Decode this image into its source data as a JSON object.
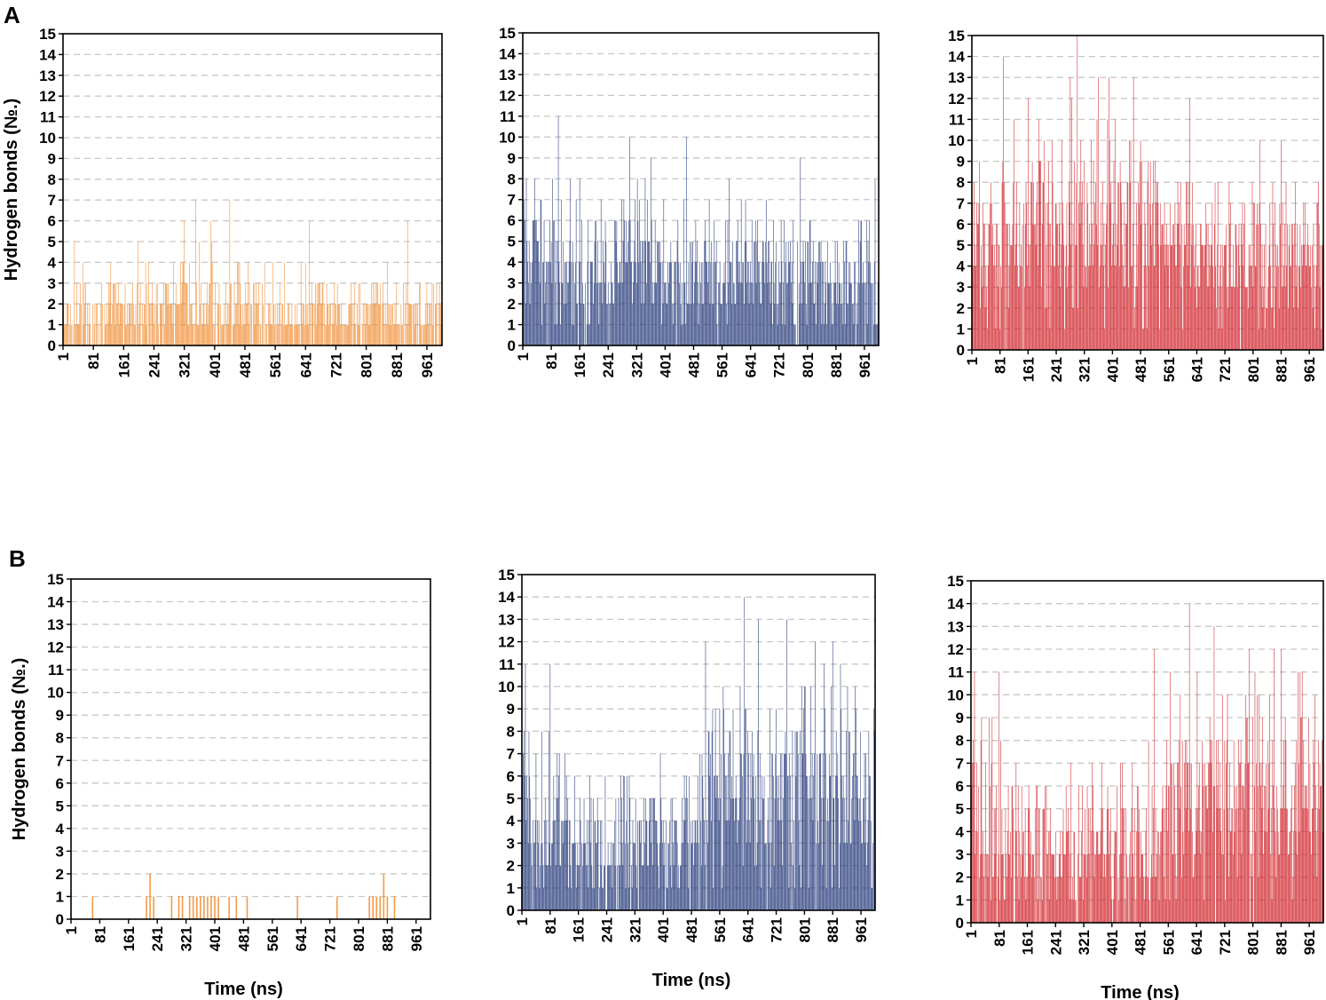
{
  "panels": [
    {
      "label": "A"
    },
    {
      "label": "B"
    }
  ],
  "colors": {
    "orange": "#f08a2c",
    "navy": "#1f3475",
    "red": "#cf2027",
    "grid": "#c8c8c8"
  },
  "chart_data": [
    {
      "id": "A1",
      "panel": "A",
      "type": "bar",
      "color": "#f08a2c",
      "title": "",
      "ylabel": "Hydrogen bonds (№.)",
      "xlabel": "",
      "ylim": [
        0,
        15
      ],
      "yticks": [
        0,
        1,
        2,
        3,
        4,
        5,
        6,
        7,
        8,
        9,
        10,
        11,
        12,
        13,
        14,
        15
      ],
      "xticks": [
        "1",
        "81",
        "161",
        "241",
        "321",
        "401",
        "481",
        "561",
        "641",
        "721",
        "801",
        "881",
        "961"
      ],
      "x_range": [
        1,
        1001
      ],
      "n": 501,
      "gridlines": "dashed",
      "profile_x": [
        1,
        301,
        481,
        1001
      ],
      "profile_mean": [
        1.3,
        2.0,
        1.6,
        1.5
      ],
      "profile_max": [
        4,
        5,
        5,
        4
      ],
      "peaks": [
        {
          "x": 31,
          "y": 5
        },
        {
          "x": 351,
          "y": 7
        },
        {
          "x": 441,
          "y": 7
        },
        {
          "x": 391,
          "y": 6
        },
        {
          "x": 321,
          "y": 6
        },
        {
          "x": 651,
          "y": 6
        },
        {
          "x": 911,
          "y": 6
        }
      ]
    },
    {
      "id": "A2",
      "panel": "A",
      "type": "bar",
      "color": "#1f3475",
      "title": "",
      "ylabel": "",
      "xlabel": "",
      "ylim": [
        0,
        15
      ],
      "yticks": [
        0,
        1,
        2,
        3,
        4,
        5,
        6,
        7,
        8,
        9,
        10,
        11,
        12,
        13,
        14,
        15
      ],
      "xticks": [
        "1",
        "81",
        "161",
        "241",
        "321",
        "401",
        "481",
        "561",
        "641",
        "721",
        "801",
        "881",
        "961"
      ],
      "x_range": [
        1,
        1001
      ],
      "n": 501,
      "gridlines": "dashed",
      "profile_x": [
        1,
        241,
        561,
        841,
        1001
      ],
      "profile_mean": [
        4.2,
        4.0,
        3.7,
        3.0,
        3.2
      ],
      "profile_max": [
        8,
        8,
        7,
        6,
        7
      ],
      "peaks": [
        {
          "x": 101,
          "y": 11
        },
        {
          "x": 301,
          "y": 10
        },
        {
          "x": 461,
          "y": 10
        },
        {
          "x": 361,
          "y": 9
        },
        {
          "x": 781,
          "y": 9
        },
        {
          "x": 581,
          "y": 8
        },
        {
          "x": 991,
          "y": 8
        },
        {
          "x": 11,
          "y": 8
        }
      ]
    },
    {
      "id": "A3",
      "panel": "A",
      "type": "bar",
      "color": "#cf2027",
      "title": "",
      "ylabel": "",
      "xlabel": "",
      "ylim": [
        0,
        15
      ],
      "yticks": [
        0,
        1,
        2,
        3,
        4,
        5,
        6,
        7,
        8,
        9,
        10,
        11,
        12,
        13,
        14,
        15
      ],
      "xticks": [
        "1",
        "81",
        "161",
        "241",
        "321",
        "401",
        "481",
        "561",
        "641",
        "721",
        "801",
        "881",
        "961"
      ],
      "x_range": [
        1,
        1001
      ],
      "n": 501,
      "gridlines": "dashed",
      "profile_x": [
        1,
        281,
        461,
        681,
        1001
      ],
      "profile_mean": [
        5.0,
        6.5,
        5.8,
        4.6,
        4.4
      ],
      "profile_max": [
        9,
        12,
        10,
        8,
        8
      ],
      "peaks": [
        {
          "x": 301,
          "y": 15
        },
        {
          "x": 91,
          "y": 14
        },
        {
          "x": 281,
          "y": 13
        },
        {
          "x": 361,
          "y": 13
        },
        {
          "x": 391,
          "y": 13
        },
        {
          "x": 461,
          "y": 13
        },
        {
          "x": 161,
          "y": 12
        },
        {
          "x": 621,
          "y": 12
        },
        {
          "x": 121,
          "y": 11
        },
        {
          "x": 821,
          "y": 10
        },
        {
          "x": 881,
          "y": 10
        }
      ]
    },
    {
      "id": "B1",
      "panel": "B",
      "type": "bar",
      "color": "#f08a2c",
      "title": "",
      "ylabel": "Hydrogen bonds (№.)",
      "xlabel": "Time (ns)",
      "ylim": [
        0,
        15
      ],
      "yticks": [
        0,
        1,
        2,
        3,
        4,
        5,
        6,
        7,
        8,
        9,
        10,
        11,
        12,
        13,
        14,
        15
      ],
      "xticks": [
        "1",
        "81",
        "161",
        "241",
        "321",
        "401",
        "481",
        "561",
        "641",
        "721",
        "801",
        "881",
        "961"
      ],
      "x_range": [
        1,
        1001
      ],
      "gridlines": "dashed",
      "sparse_bars": [
        [
          61,
          1
        ],
        [
          211,
          1
        ],
        [
          221,
          2
        ],
        [
          231,
          1
        ],
        [
          281,
          1
        ],
        [
          301,
          1
        ],
        [
          311,
          1
        ],
        [
          331,
          1
        ],
        [
          341,
          1
        ],
        [
          351,
          1
        ],
        [
          361,
          1
        ],
        [
          371,
          1
        ],
        [
          381,
          1
        ],
        [
          391,
          1
        ],
        [
          401,
          1
        ],
        [
          411,
          1
        ],
        [
          441,
          1
        ],
        [
          461,
          1
        ],
        [
          491,
          1
        ],
        [
          631,
          1
        ],
        [
          741,
          1
        ],
        [
          831,
          1
        ],
        [
          841,
          1
        ],
        [
          851,
          1
        ],
        [
          861,
          1
        ],
        [
          871,
          2
        ],
        [
          881,
          1
        ],
        [
          901,
          1
        ]
      ]
    },
    {
      "id": "B2",
      "panel": "B",
      "type": "bar",
      "color": "#1f3475",
      "title": "",
      "ylabel": "",
      "xlabel": "Time (ns)",
      "ylim": [
        0,
        15
      ],
      "yticks": [
        0,
        1,
        2,
        3,
        4,
        5,
        6,
        7,
        8,
        9,
        10,
        11,
        12,
        13,
        14,
        15
      ],
      "xticks": [
        "1",
        "81",
        "161",
        "241",
        "321",
        "401",
        "481",
        "561",
        "641",
        "721",
        "801",
        "881",
        "961"
      ],
      "x_range": [
        1,
        1001
      ],
      "n": 501,
      "gridlines": "dashed",
      "profile_x": [
        1,
        161,
        261,
        501,
        551,
        1001
      ],
      "profile_mean": [
        4.6,
        3.4,
        3.0,
        3.6,
        5.6,
        5.4
      ],
      "profile_max": [
        10,
        8,
        7,
        7,
        11,
        11
      ],
      "peaks": [
        {
          "x": 631,
          "y": 14
        },
        {
          "x": 671,
          "y": 13
        },
        {
          "x": 751,
          "y": 13
        },
        {
          "x": 521,
          "y": 12
        },
        {
          "x": 831,
          "y": 12
        },
        {
          "x": 881,
          "y": 12
        },
        {
          "x": 11,
          "y": 11
        },
        {
          "x": 81,
          "y": 11
        }
      ]
    },
    {
      "id": "B3",
      "panel": "B",
      "type": "bar",
      "color": "#cf2027",
      "title": "",
      "ylabel": "",
      "xlabel": "Time (ns)",
      "ylim": [
        0,
        15
      ],
      "yticks": [
        0,
        1,
        2,
        3,
        4,
        5,
        6,
        7,
        8,
        9,
        10,
        11,
        12,
        13,
        14,
        15
      ],
      "xticks": [
        "1",
        "81",
        "161",
        "241",
        "321",
        "401",
        "481",
        "561",
        "641",
        "721",
        "801",
        "881",
        "961"
      ],
      "x_range": [
        1,
        1001
      ],
      "n": 501,
      "gridlines": "dashed",
      "profile_x": [
        1,
        161,
        261,
        501,
        551,
        1001
      ],
      "profile_mean": [
        4.6,
        3.4,
        3.0,
        3.6,
        5.6,
        5.4
      ],
      "profile_max": [
        10,
        8,
        7,
        8,
        11,
        11
      ],
      "peaks": [
        {
          "x": 621,
          "y": 14
        },
        {
          "x": 691,
          "y": 13
        },
        {
          "x": 521,
          "y": 12
        },
        {
          "x": 791,
          "y": 12
        },
        {
          "x": 861,
          "y": 12
        },
        {
          "x": 881,
          "y": 12
        },
        {
          "x": 11,
          "y": 11
        },
        {
          "x": 81,
          "y": 11
        }
      ]
    }
  ],
  "labels": {
    "xlabel": "Time (ns)",
    "ylabel": "Hydrogen bonds (№.)"
  }
}
